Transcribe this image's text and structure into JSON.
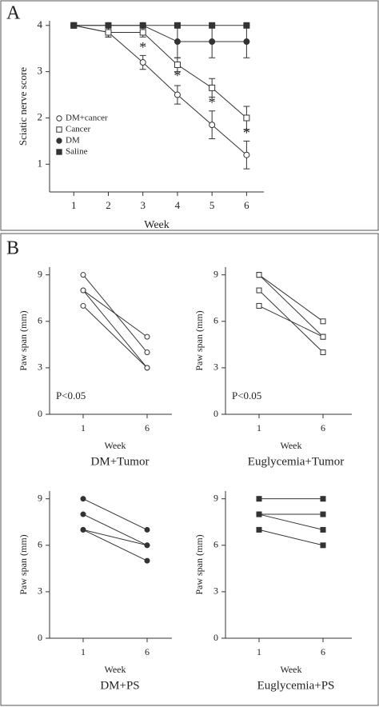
{
  "panels": [
    "A",
    "B"
  ],
  "chart_data": [
    {
      "type": "line",
      "xlabel": "Week",
      "ylabel": "Sciatic nerve score",
      "x": [
        1,
        2,
        3,
        4,
        5,
        6
      ],
      "xlim": [
        0.3,
        6.5
      ],
      "xticks": [
        1,
        2,
        3,
        4,
        5,
        6
      ],
      "ylim": [
        0.4,
        4.1
      ],
      "yticks": [
        1,
        2,
        3,
        4
      ],
      "legend": "lower left",
      "series": [
        {
          "name": "DM+cancer",
          "marker": "open-circle",
          "color": "#333333",
          "values": [
            4,
            3.85,
            3.2,
            2.5,
            1.85,
            1.2
          ],
          "errors": [
            0,
            0.1,
            0.15,
            0.2,
            0.3,
            0.3
          ]
        },
        {
          "name": "Cancer",
          "marker": "open-square",
          "color": "#333333",
          "values": [
            4,
            3.85,
            3.85,
            3.15,
            2.65,
            2.0
          ],
          "errors": [
            0,
            0.1,
            0.1,
            0.15,
            0.2,
            0.25
          ]
        },
        {
          "name": "DM",
          "marker": "filled-circle",
          "color": "#333333",
          "values": [
            4,
            4,
            4,
            3.65,
            3.65,
            3.65
          ],
          "errors": [
            0,
            0,
            0,
            0.35,
            0.35,
            0.35
          ]
        },
        {
          "name": "Saline",
          "marker": "filled-square",
          "color": "#333333",
          "values": [
            4,
            4,
            4,
            4,
            4,
            4
          ],
          "errors": [
            0,
            0,
            0,
            0,
            0,
            0
          ]
        }
      ],
      "annotations": [
        {
          "text": "*",
          "x": 3,
          "y": 3.5
        },
        {
          "text": "*",
          "x": 4,
          "y": 2.88
        },
        {
          "text": "*",
          "x": 5,
          "y": 2.3
        },
        {
          "text": "*",
          "x": 6,
          "y": 1.65
        }
      ]
    },
    {
      "type": "paired",
      "title": "DM+Tumor",
      "xlabel": "Week",
      "ylabel": "Paw span (mm)",
      "categories": [
        "1",
        "6"
      ],
      "ylim": [
        0,
        9.5
      ],
      "yticks": [
        0,
        3,
        6,
        9
      ],
      "marker": "open-circle",
      "color": "#333333",
      "series": [
        {
          "values": [
            9,
            4
          ]
        },
        {
          "values": [
            8,
            5
          ]
        },
        {
          "values": [
            8,
            3
          ]
        },
        {
          "values": [
            7,
            3
          ]
        }
      ],
      "annotation": "P<0.05"
    },
    {
      "type": "paired",
      "title": "Euglycemia+Tumor",
      "xlabel": "Week",
      "ylabel": "Paw span (mm)",
      "categories": [
        "1",
        "6"
      ],
      "ylim": [
        0,
        9.5
      ],
      "yticks": [
        0,
        3,
        6,
        9
      ],
      "marker": "open-square",
      "color": "#333333",
      "series": [
        {
          "values": [
            9,
            6
          ]
        },
        {
          "values": [
            9,
            5
          ]
        },
        {
          "values": [
            8,
            4
          ]
        },
        {
          "values": [
            7,
            5
          ]
        }
      ],
      "annotation": "P<0.05"
    },
    {
      "type": "paired",
      "title": "DM+PS",
      "xlabel": "Week",
      "ylabel": "Paw span (mm)",
      "categories": [
        "1",
        "6"
      ],
      "ylim": [
        0,
        9.5
      ],
      "yticks": [
        0,
        3,
        6,
        9
      ],
      "marker": "filled-circle",
      "color": "#333333",
      "series": [
        {
          "values": [
            9,
            7
          ]
        },
        {
          "values": [
            8,
            6
          ]
        },
        {
          "values": [
            7,
            6
          ]
        },
        {
          "values": [
            7,
            5
          ]
        }
      ]
    },
    {
      "type": "paired",
      "title": "Euglycemia+PS",
      "xlabel": "Week",
      "ylabel": "Paw span (mm)",
      "categories": [
        "1",
        "6"
      ],
      "ylim": [
        0,
        9.5
      ],
      "yticks": [
        0,
        3,
        6,
        9
      ],
      "marker": "filled-square",
      "color": "#333333",
      "series": [
        {
          "values": [
            9,
            9
          ]
        },
        {
          "values": [
            8,
            8
          ]
        },
        {
          "values": [
            8,
            7
          ]
        },
        {
          "values": [
            7,
            6
          ]
        }
      ]
    }
  ]
}
